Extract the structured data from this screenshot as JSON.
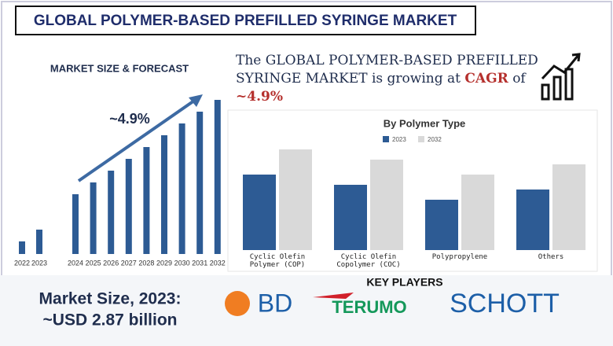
{
  "title": "GLOBAL POLYMER-BASED PREFILLED SYRINGE MARKET",
  "chart_data": [
    {
      "type": "bar",
      "title": "MARKET SIZE & FORECAST",
      "annotation": "~4.9%",
      "categories": [
        "2022",
        "2023",
        "2024",
        "2025",
        "2026",
        "2027",
        "2028",
        "2029",
        "2030",
        "2031",
        "2032"
      ],
      "values": [
        16,
        31,
        76,
        91,
        106,
        121,
        136,
        151,
        166,
        181,
        196
      ],
      "color": "#2d5b94"
    },
    {
      "type": "grouped-bar",
      "title": "By Polymer Type",
      "categories": [
        "Cyclic Olefin Polymer (COP)",
        "Cyclic Olefin Copolymer (COC)",
        "Polypropylene",
        "Others"
      ],
      "series": [
        {
          "name": "2023",
          "color": "#2d5b94",
          "values": [
            96,
            83,
            64,
            77
          ]
        },
        {
          "name": "2032",
          "color": "#d9d9d9",
          "values": [
            128,
            115,
            96,
            109
          ]
        }
      ],
      "legend": "top"
    }
  ],
  "cagr_text": [
    "The GLOBAL POLYMER-BASED PREFILLED SYRINGE MARKET is growing at",
    "CAGR",
    "of",
    "~4.9%"
  ],
  "market_size": {
    "label": "Market Size, 2023:",
    "value": "~USD 2.87 billion"
  },
  "key_players": {
    "title": "KEY PLAYERS",
    "names": [
      "BD",
      "TERUMO",
      "SCHOTT"
    ]
  }
}
